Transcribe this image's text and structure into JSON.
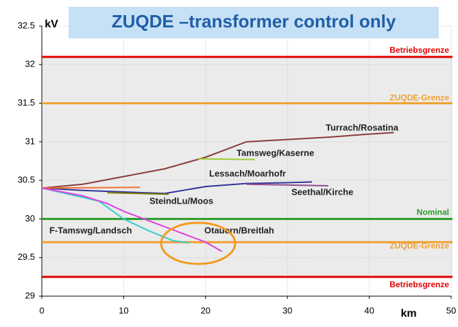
{
  "chart_data": {
    "type": "line",
    "title": "ZUQDE –transformer control only",
    "xlabel": "km",
    "ylabel": "kV",
    "xlim": [
      0,
      50
    ],
    "xticks": [
      0,
      10,
      20,
      30,
      40,
      50
    ],
    "ylim": [
      29,
      32.5
    ],
    "yticks": [
      29,
      29.5,
      30,
      30.5,
      31,
      31.5,
      32,
      32.5
    ],
    "grid": true,
    "reference_lines": [
      {
        "label": "Betriebsgrenze",
        "value": 32.1,
        "color": "#e00000"
      },
      {
        "label": "ZUQDE-Grenze",
        "value": 31.5,
        "color": "#f0a030"
      },
      {
        "label": "Nominal",
        "value": 30,
        "color": "#2a9a2a"
      },
      {
        "label": "ZUQDE-Grenze",
        "value": 29.7,
        "color": "#f0a030"
      },
      {
        "label": "Betriebsgrenze",
        "value": 29.25,
        "color": "#e00000"
      }
    ],
    "series": [
      {
        "name": "Turrach/Rosatina",
        "color": "#8b3a3a",
        "x": [
          0,
          5,
          10,
          15,
          20,
          25,
          30,
          35,
          40,
          43
        ],
        "values": [
          30.4,
          30.45,
          30.55,
          30.65,
          30.8,
          31.0,
          31.03,
          31.06,
          31.1,
          31.12
        ]
      },
      {
        "name": "Tamsweg/Kaserne",
        "color": "#9acd32",
        "x": [
          19,
          26
        ],
        "values": [
          30.78,
          30.77
        ]
      },
      {
        "name": "Lessach/Moarhofr",
        "color": "#333399",
        "x": [
          0,
          5,
          10,
          15,
          20,
          25,
          30,
          33
        ],
        "values": [
          30.4,
          30.37,
          30.35,
          30.33,
          30.42,
          30.46,
          30.47,
          30.48
        ]
      },
      {
        "name": "Seethal/Kirche",
        "color": "#8e4a8e",
        "x": [
          25,
          35
        ],
        "values": [
          30.45,
          30.43
        ]
      },
      {
        "color": "#f07030",
        "x": [
          0,
          12
        ],
        "values": [
          30.4,
          30.41
        ]
      },
      {
        "name": "SteindLu/Moos",
        "color": "#808000",
        "x": [
          8,
          15.5
        ],
        "values": [
          30.34,
          30.32
        ]
      },
      {
        "name": "F-Tamswg/Landsch",
        "color": "#33cccc",
        "x": [
          0,
          5,
          7,
          10,
          13,
          16,
          18
        ],
        "values": [
          30.4,
          30.28,
          30.23,
          30.0,
          29.85,
          29.72,
          29.69
        ]
      },
      {
        "name": "Otauern/Breitlah",
        "color": "#e040e0",
        "x": [
          0,
          5,
          8,
          10,
          15,
          20,
          22
        ],
        "values": [
          30.4,
          30.3,
          30.2,
          30.1,
          29.9,
          29.7,
          29.58
        ]
      }
    ]
  }
}
